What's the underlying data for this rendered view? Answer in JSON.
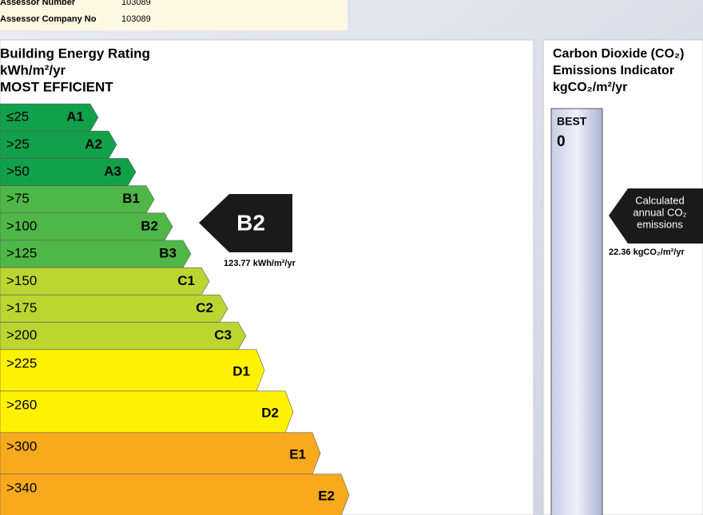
{
  "assessor": {
    "rows": [
      [
        "Assessor Number",
        "103089"
      ],
      [
        "Assessor Company No",
        "103089"
      ]
    ]
  },
  "energy_rating": {
    "title_lines": [
      "Building Energy Rating",
      "kWh/m²/yr",
      "MOST EFFICIENT"
    ],
    "bands": [
      {
        "range": "≤25",
        "grade": "A1"
      },
      {
        "range": ">25",
        "grade": "A2"
      },
      {
        "range": ">50",
        "grade": "A3"
      },
      {
        "range": ">75",
        "grade": "B1"
      },
      {
        "range": ">100",
        "grade": "B2"
      },
      {
        "range": ">125",
        "grade": "B3"
      },
      {
        "range": ">150",
        "grade": "C1"
      },
      {
        "range": ">175",
        "grade": "C2"
      },
      {
        "range": ">200",
        "grade": "C3"
      },
      {
        "range": ">225",
        "grade": "D1"
      },
      {
        "range": ">260",
        "grade": "D2"
      },
      {
        "range": ">300",
        "grade": "E1"
      },
      {
        "range": ">340",
        "grade": "E2"
      }
    ],
    "result_grade": "B2",
    "result_value": "123.77 kWh/m²/yr"
  },
  "co2": {
    "title_lines": [
      "Carbon Dioxide (CO₂)",
      "Emissions Indicator",
      "kgCO₂/m²/yr"
    ],
    "scale_top_label": "BEST",
    "scale_top_value": "0",
    "indicator_lines": [
      "Calculated",
      "annual CO₂",
      "emissions"
    ],
    "result_value": "22.36 kgCO₂/m²/yr"
  }
}
